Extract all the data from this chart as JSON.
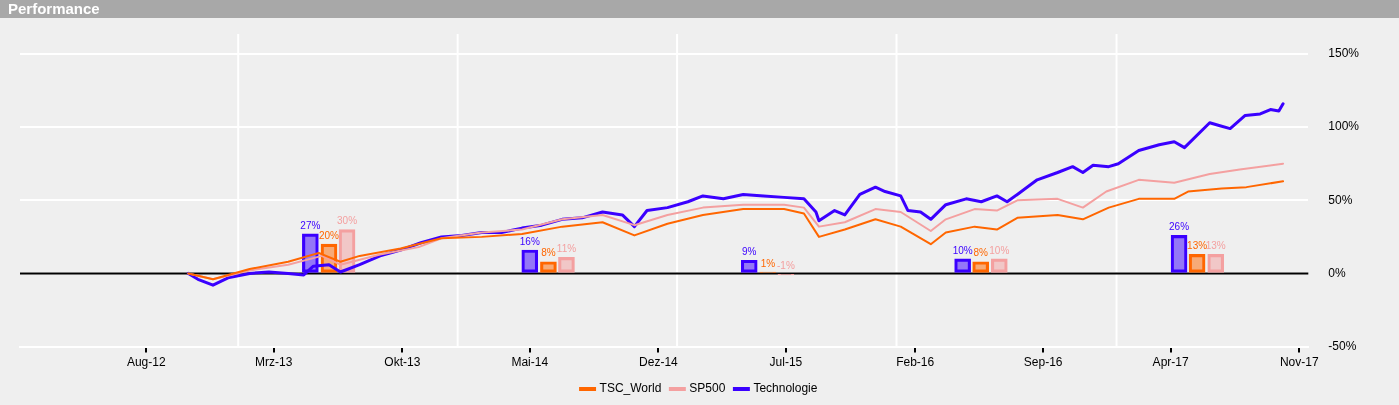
{
  "chart_data": {
    "type": "bar",
    "title": "Performance",
    "xlim": [
      "2012-01-04",
      "2017-11-16"
    ],
    "xticks": [
      {
        "value": "2012-08-01",
        "label": "Aug-12"
      },
      {
        "value": "2013-03-01",
        "label": "Mrz-13"
      },
      {
        "value": "2013-10-01",
        "label": "Okt-13"
      },
      {
        "value": "2014-05-01",
        "label": "Mai-14"
      },
      {
        "value": "2014-12-01",
        "label": "Dez-14"
      },
      {
        "value": "2015-07-01",
        "label": "Jul-15"
      },
      {
        "value": "2016-02-01",
        "label": "Feb-16"
      },
      {
        "value": "2016-09-01",
        "label": "Sep-16"
      },
      {
        "value": "2017-04-01",
        "label": "Apr-17"
      },
      {
        "value": "2017-11-01",
        "label": "Nov-17"
      }
    ],
    "ylim": [
      -50,
      150
    ],
    "yticks": [
      {
        "value": -50,
        "label": "-50%"
      },
      {
        "value": 0,
        "label": "0%"
      },
      {
        "value": 50,
        "label": "50%"
      },
      {
        "value": 100,
        "label": "100%"
      },
      {
        "value": 150,
        "label": "150%"
      }
    ],
    "grid": "y",
    "legend": "bottom",
    "ref_lines": [
      {
        "axis": "x",
        "value": "2013-01-01",
        "color": "#ffffff"
      },
      {
        "axis": "x",
        "value": "2014-01-01",
        "color": "#ffffff"
      },
      {
        "axis": "x",
        "value": "2015-01-01",
        "color": "#ffffff"
      },
      {
        "axis": "x",
        "value": "2016-01-01",
        "color": "#ffffff"
      },
      {
        "axis": "x",
        "value": "2017-01-01",
        "color": "#ffffff"
      },
      {
        "axis": "y",
        "value": 0,
        "color": "#000000"
      }
    ],
    "series": [
      {
        "color": "#3a00ff",
        "x": [
          "2013-05-01",
          "2014-05-01",
          "2015-05-01",
          "2016-04-20",
          "2017-04-15"
        ],
        "values": [
          27,
          16,
          9,
          10,
          26
        ],
        "value_labels": [
          "27%",
          "16%",
          "9%",
          "10%",
          "26%"
        ]
      },
      {
        "color": "#ff6600",
        "x": [
          "2013-06-01",
          "2014-06-01",
          "2015-06-01",
          "2016-05-20",
          "2017-05-15"
        ],
        "values": [
          20,
          8,
          1,
          8,
          13
        ],
        "value_labels": [
          "20%",
          "8%",
          "1%",
          "8%",
          "13%"
        ]
      },
      {
        "color": "#f4a0a0",
        "x": [
          "2013-07-01",
          "2014-07-01",
          "2015-07-01",
          "2016-06-20",
          "2017-06-15"
        ],
        "values": [
          30,
          11,
          -1,
          10,
          13
        ],
        "value_labels": [
          "30%",
          "11%",
          "-1%",
          "10%",
          "13%"
        ]
      },
      {
        "type": "line",
        "name": "TSC_World",
        "color": "#ff6600",
        "x": [
          "2012-10-10",
          "2012-11-20",
          "2013-01-20",
          "2013-03-25",
          "2013-05-15",
          "2013-06-20",
          "2013-07-22",
          "2013-09-28",
          "2013-12-05",
          "2014-02-10",
          "2014-04-18",
          "2014-06-24",
          "2014-08-30",
          "2014-10-22",
          "2014-12-16",
          "2015-02-13",
          "2015-04-21",
          "2015-06-28",
          "2015-07-31",
          "2015-08-25",
          "2015-10-07",
          "2015-11-27",
          "2016-01-08",
          "2016-02-27",
          "2016-03-23",
          "2016-05-10",
          "2016-06-16",
          "2016-07-20",
          "2016-09-25",
          "2016-11-06",
          "2016-12-19",
          "2017-02-07",
          "2017-04-07",
          "2017-04-30",
          "2017-06-25",
          "2017-08-05",
          "2017-10-05"
        ],
        "values": [
          0,
          -4,
          3,
          8,
          14,
          8,
          12,
          17,
          24,
          25,
          27,
          32,
          35,
          26,
          34,
          40,
          44,
          44,
          41,
          25,
          30,
          37,
          32,
          20,
          28,
          32,
          30,
          38,
          40,
          37,
          45,
          51,
          51,
          56,
          58,
          59,
          63
        ]
      },
      {
        "type": "line",
        "name": "SP500",
        "color": "#f4a0a0",
        "x": [
          "2012-10-10",
          "2012-11-20",
          "2013-01-20",
          "2013-03-25",
          "2013-05-20",
          "2013-06-20",
          "2013-08-25",
          "2013-10-28",
          "2013-12-05",
          "2014-02-10",
          "2014-04-18",
          "2014-06-24",
          "2014-08-30",
          "2014-10-22",
          "2014-12-16",
          "2015-02-13",
          "2015-04-21",
          "2015-06-28",
          "2015-07-31",
          "2015-08-25",
          "2015-10-07",
          "2015-11-27",
          "2016-01-08",
          "2016-02-27",
          "2016-03-23",
          "2016-05-10",
          "2016-06-16",
          "2016-07-20",
          "2016-09-25",
          "2016-11-06",
          "2016-12-15",
          "2017-02-07",
          "2017-04-07",
          "2017-06-05",
          "2017-07-25",
          "2017-10-05"
        ],
        "values": [
          0,
          -4,
          2,
          6,
          12,
          6,
          13,
          18,
          24,
          28,
          30,
          37,
          40,
          33,
          40,
          45,
          47,
          47,
          45,
          32,
          35,
          44,
          42,
          29,
          37,
          44,
          43,
          50,
          51,
          45,
          56,
          64,
          62,
          68,
          71,
          75
        ]
      },
      {
        "type": "line",
        "name": "Technologie",
        "color": "#3a00ff",
        "x": [
          "2012-10-10",
          "2012-10-26",
          "2012-11-20",
          "2012-12-15",
          "2013-01-20",
          "2013-02-21",
          "2013-03-25",
          "2013-04-20",
          "2013-05-06",
          "2013-06-01",
          "2013-06-20",
          "2013-07-22",
          "2013-08-25",
          "2013-09-28",
          "2013-11-01",
          "2013-12-05",
          "2014-01-08",
          "2014-02-10",
          "2014-03-15",
          "2014-04-18",
          "2014-05-21",
          "2014-06-24",
          "2014-07-27",
          "2014-08-30",
          "2014-10-02",
          "2014-10-22",
          "2014-11-12",
          "2014-12-16",
          "2015-01-19",
          "2015-02-13",
          "2015-03-19",
          "2015-04-21",
          "2015-05-25",
          "2015-06-28",
          "2015-07-31",
          "2015-08-20",
          "2015-08-25",
          "2015-09-20",
          "2015-10-07",
          "2015-11-01",
          "2015-11-27",
          "2015-12-13",
          "2016-01-08",
          "2016-01-20",
          "2016-02-10",
          "2016-02-27",
          "2016-03-23",
          "2016-04-26",
          "2016-05-21",
          "2016-06-16",
          "2016-07-03",
          "2016-07-20",
          "2016-08-22",
          "2016-09-25",
          "2016-10-20",
          "2016-11-06",
          "2016-11-23",
          "2016-12-19",
          "2017-01-04",
          "2017-02-07",
          "2017-03-13",
          "2017-04-07",
          "2017-04-24",
          "2017-06-05",
          "2017-06-22",
          "2017-07-09",
          "2017-08-03",
          "2017-08-28",
          "2017-09-14",
          "2017-09-28",
          "2017-10-05"
        ],
        "values": [
          0,
          -4,
          -8,
          -3,
          0,
          1,
          0,
          -1,
          5,
          6,
          1,
          6,
          12,
          16,
          21,
          25,
          26,
          28,
          28,
          31,
          33,
          37,
          38,
          42,
          40,
          32,
          43,
          45,
          49,
          53,
          51,
          54,
          53,
          52,
          51,
          42,
          36,
          43,
          40,
          54,
          59,
          56,
          53,
          43,
          42,
          37,
          47,
          51,
          49,
          53,
          49,
          54,
          64,
          69,
          73,
          69,
          74,
          73,
          75,
          84,
          88,
          90,
          86,
          103,
          101,
          99,
          108,
          109,
          112,
          111,
          116
        ]
      }
    ]
  }
}
